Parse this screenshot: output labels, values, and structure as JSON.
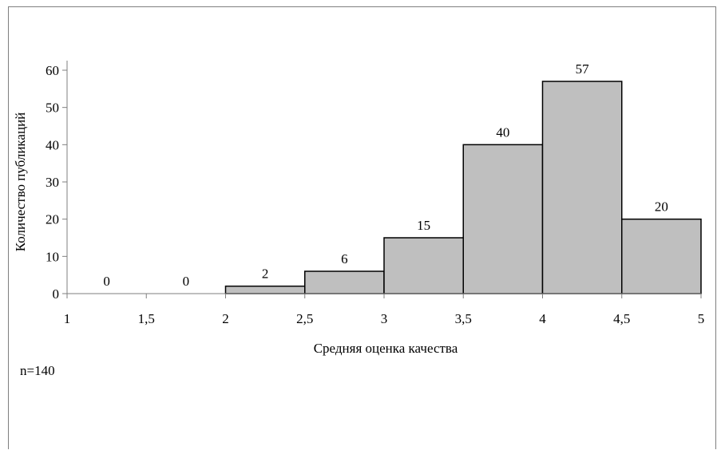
{
  "chart_data": {
    "type": "bar",
    "bins": [
      {
        "from": 1.0,
        "to": 1.5,
        "value": 0
      },
      {
        "from": 1.5,
        "to": 2.0,
        "value": 0
      },
      {
        "from": 2.0,
        "to": 2.5,
        "value": 2
      },
      {
        "from": 2.5,
        "to": 3.0,
        "value": 6
      },
      {
        "from": 3.0,
        "to": 3.5,
        "value": 15
      },
      {
        "from": 3.5,
        "to": 4.0,
        "value": 40
      },
      {
        "from": 4.0,
        "to": 4.5,
        "value": 57
      },
      {
        "from": 4.5,
        "to": 5.0,
        "value": 20
      }
    ],
    "x_ticks": [
      "1",
      "1,5",
      "2",
      "2,5",
      "3",
      "3,5",
      "4",
      "4,5",
      "5"
    ],
    "y_ticks": [
      "0",
      "10",
      "20",
      "30",
      "40",
      "50",
      "60"
    ],
    "xlim": [
      1,
      5
    ],
    "ylim": [
      0,
      60
    ],
    "xlabel": "Средняя оценка качества",
    "ylabel": "Количество публикаций",
    "bar_color": "#bfbfbf",
    "bar_edge_color": "#000000",
    "grid": false,
    "legend": "none"
  },
  "note": "n=140"
}
